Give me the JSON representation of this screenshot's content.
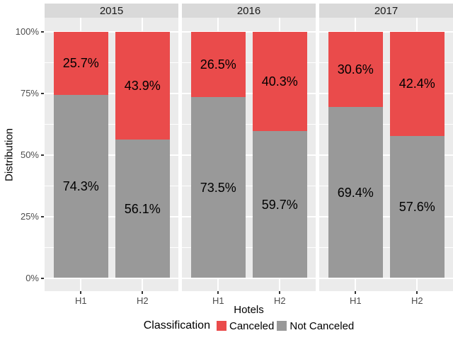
{
  "chart_data": {
    "type": "bar",
    "variant": "stacked-percent-faceted",
    "facet_titles": [
      "2015",
      "2016",
      "2017"
    ],
    "categories": [
      "H1",
      "H2"
    ],
    "series_order": [
      "Canceled",
      "Not Canceled"
    ],
    "facets": [
      {
        "year": "2015",
        "bars": [
          {
            "hotel": "H1",
            "segments": [
              {
                "name": "Canceled",
                "value": 25.7,
                "label": "25.7%"
              },
              {
                "name": "Not Canceled",
                "value": 74.3,
                "label": "74.3%"
              }
            ]
          },
          {
            "hotel": "H2",
            "segments": [
              {
                "name": "Canceled",
                "value": 43.9,
                "label": "43.9%"
              },
              {
                "name": "Not Canceled",
                "value": 56.1,
                "label": "56.1%"
              }
            ]
          }
        ]
      },
      {
        "year": "2016",
        "bars": [
          {
            "hotel": "H1",
            "segments": [
              {
                "name": "Canceled",
                "value": 26.5,
                "label": "26.5%"
              },
              {
                "name": "Not Canceled",
                "value": 73.5,
                "label": "73.5%"
              }
            ]
          },
          {
            "hotel": "H2",
            "segments": [
              {
                "name": "Canceled",
                "value": 40.3,
                "label": "40.3%"
              },
              {
                "name": "Not Canceled",
                "value": 59.7,
                "label": "59.7%"
              }
            ]
          }
        ]
      },
      {
        "year": "2017",
        "bars": [
          {
            "hotel": "H1",
            "segments": [
              {
                "name": "Canceled",
                "value": 30.6,
                "label": "30.6%"
              },
              {
                "name": "Not Canceled",
                "value": 69.4,
                "label": "69.4%"
              }
            ]
          },
          {
            "hotel": "H2",
            "segments": [
              {
                "name": "Canceled",
                "value": 42.4,
                "label": "42.4%"
              },
              {
                "name": "Not Canceled",
                "value": 57.6,
                "label": "57.6%"
              }
            ]
          }
        ]
      }
    ],
    "xlabel": "Hotels",
    "ylabel": "Distribution",
    "y_ticks": [
      "100%",
      "75%",
      "50%",
      "25%",
      "0%"
    ],
    "ylim": [
      0,
      100
    ],
    "grid": "white horizontal major (25% steps) and minor (12.5% offsets), white vertical at category centers",
    "legend": {
      "title": "Classification",
      "position": "bottom",
      "items": [
        {
          "label": "Canceled",
          "color": "#EA4B4B"
        },
        {
          "label": "Not Canceled",
          "color": "#999999"
        }
      ]
    }
  },
  "colors": {
    "canceled": "#EA4B4B",
    "not_canceled": "#999999",
    "panel_background": "#EBEBEB",
    "strip_background": "#D9D9D9",
    "gridline": "#FFFFFF",
    "tick_label": "#4D4D4D",
    "axis_title": "#000000",
    "bar_label": "#000000",
    "tick_mark": "#333333"
  }
}
